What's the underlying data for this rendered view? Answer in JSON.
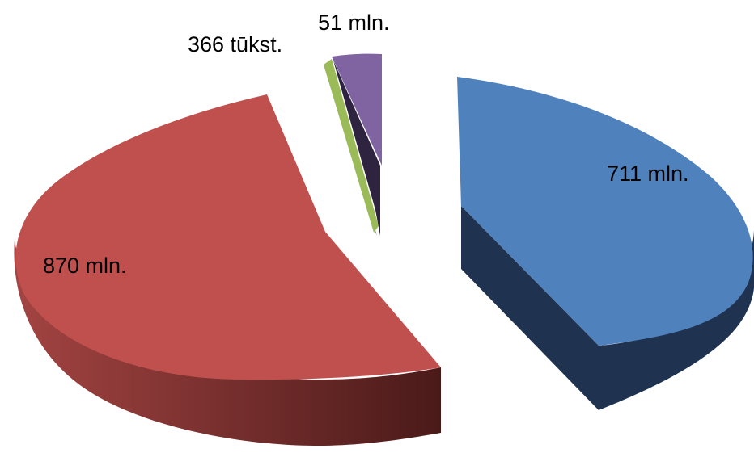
{
  "chart_data": {
    "type": "pie",
    "variant": "3d-exploded",
    "title": "",
    "legend": "none",
    "slices": [
      {
        "label": "711 mln.",
        "value": 711000000,
        "color": "#4F81BD",
        "side_color": "#1F3350"
      },
      {
        "label": "870 mln.",
        "value": 870000000,
        "color": "#C0504D",
        "side_color": "#5E2423"
      },
      {
        "label": "366 tūkst.",
        "value": 366000,
        "color": "#9BBB59",
        "side_color": "#3A4A20"
      },
      {
        "label": "51 mln.",
        "value": 51000000,
        "color": "#8064A2",
        "side_color": "#3E2F52"
      }
    ]
  }
}
